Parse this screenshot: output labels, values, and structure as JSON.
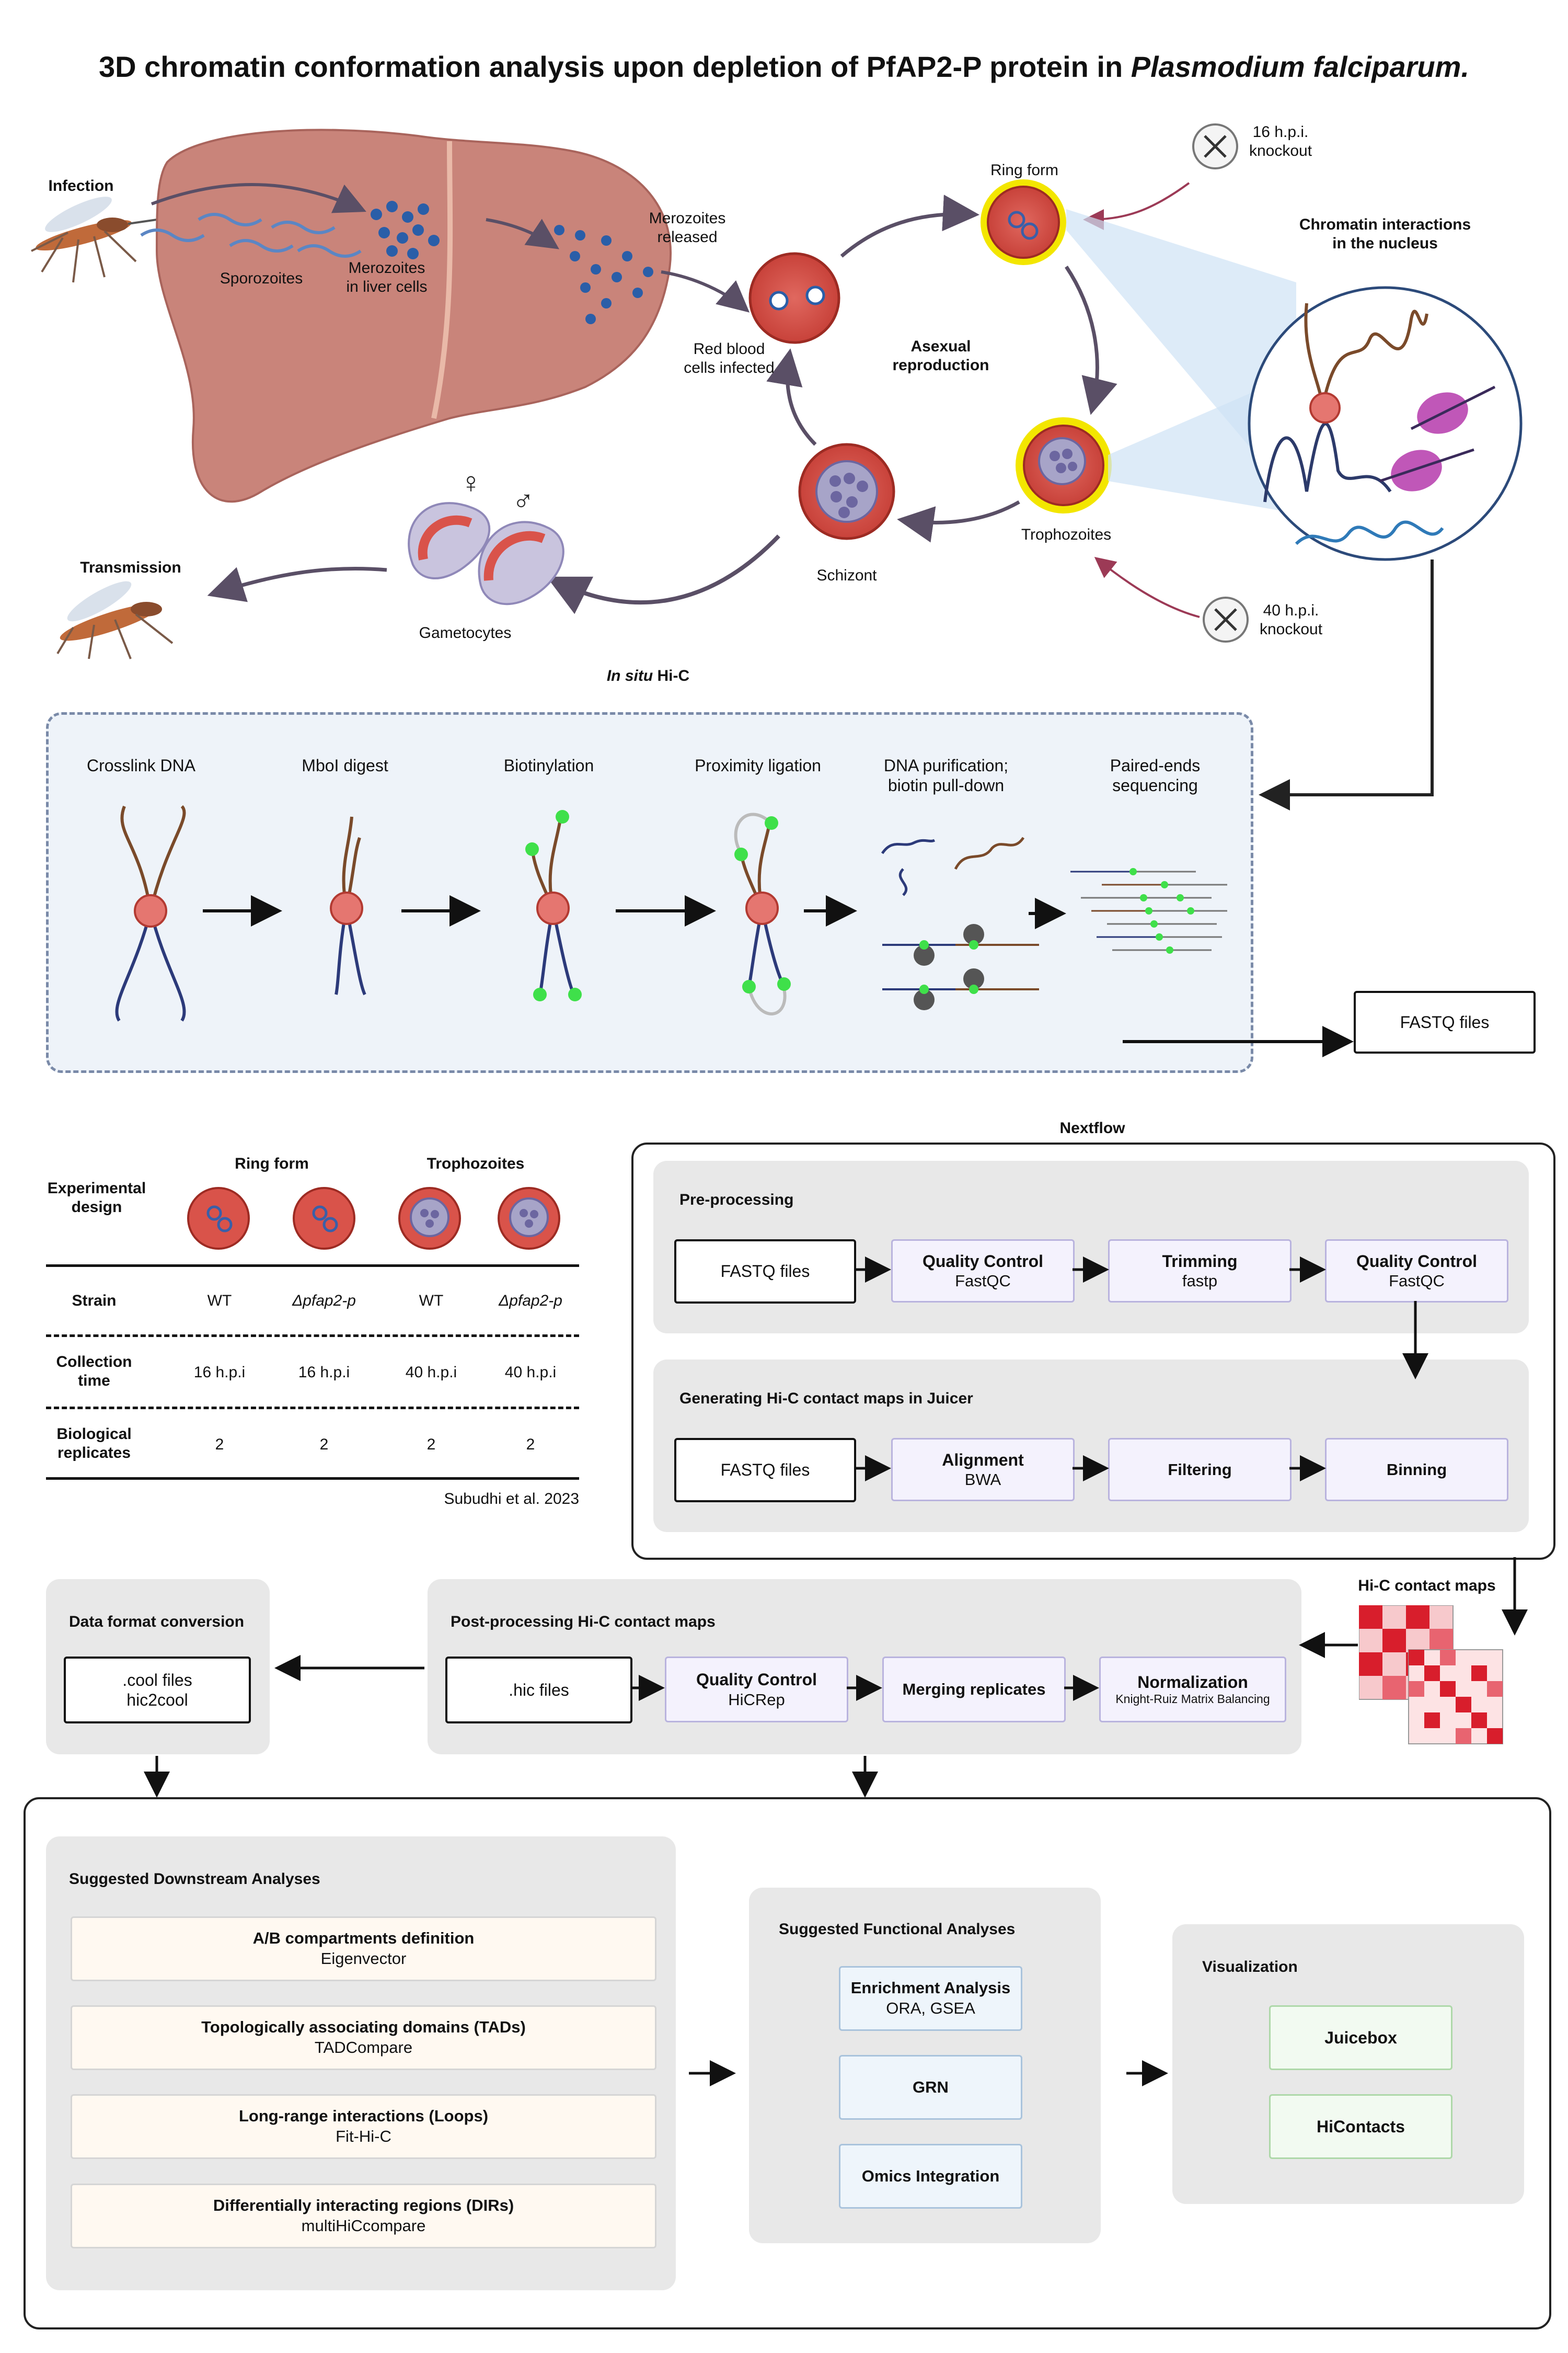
{
  "title_prefix": "3D chromatin conformation analysis upon depletion of PfAP2-P protein in ",
  "title_species": "Plasmodium falciparum.",
  "lifecycle": {
    "infection": "Infection",
    "sporozoites": "Sporozoites",
    "merozoites_liver": "Merozoites\nin liver cells",
    "merozoites_released": "Merozoites\nreleased",
    "rbc_infected": "Red blood\ncells infected",
    "ring_form": "Ring form",
    "asexual": "Asexual\nreproduction",
    "trophozoites": "Trophozoites",
    "schizont": "Schizont",
    "gametocytes": "Gametocytes",
    "transmission": "Transmission",
    "ko16": "16 h.p.i.\nknockout",
    "ko40": "40 h.p.i.\nknockout",
    "chromatin": "Chromatin interactions\nin the nucleus",
    "female_symbol": "♀",
    "male_symbol": "♂"
  },
  "hic": {
    "title_italic": "In situ",
    "title_rest": " Hi-C",
    "steps": [
      "Crosslink DNA",
      "MboI digest",
      "Biotinylation",
      "Proximity ligation",
      "DNA purification;\nbiotin pull-down",
      "Paired-ends\nsequencing"
    ],
    "fastq": "FASTQ files"
  },
  "design": {
    "header": "Experimental\ndesign",
    "col_group_ring": "Ring form",
    "col_group_troph": "Trophozoites",
    "rows": [
      {
        "label": "Strain",
        "values": [
          "WT",
          "Δpfap2-p",
          "WT",
          "Δpfap2-p"
        ]
      },
      {
        "label": "Collection\ntime",
        "values": [
          "16 h.p.i",
          "16 h.p.i",
          "40 h.p.i",
          "40 h.p.i"
        ]
      },
      {
        "label": "Biological\nreplicates",
        "values": [
          "2",
          "2",
          "2",
          "2"
        ]
      }
    ],
    "citation": "Subudhi et al. 2023"
  },
  "nextflow": {
    "title": "Nextflow",
    "pre_title": "Pre-processing",
    "pre": {
      "fastq": "FASTQ files",
      "qc1_bold": "Quality Control",
      "qc1_sub": "FastQC",
      "trim_bold": "Trimming",
      "trim_sub": "fastp",
      "qc2_bold": "Quality Control",
      "qc2_sub": "FastQC"
    },
    "juicer_title": "Generating Hi-C contact maps in Juicer",
    "juicer": {
      "fastq": "FASTQ files",
      "align_bold": "Alignment",
      "align_sub": "BWA",
      "filter": "Filtering",
      "binning": "Binning"
    }
  },
  "contact_maps": "Hi-C contact maps",
  "conversion": {
    "title": "Data format conversion",
    "box_line1": ".cool files",
    "box_line2": "hic2cool"
  },
  "post": {
    "title": "Post-processing Hi-C contact maps",
    "hic": ".hic files",
    "qc_bold": "Quality Control",
    "qc_sub": "HiCRep",
    "merge": "Merging replicates",
    "norm_bold": "Normalization",
    "norm_sub": "Knight-Ruiz Matrix Balancing"
  },
  "downstream": {
    "title": "Suggested Downstream Analyses",
    "items": [
      {
        "bold": "A/B compartments definition",
        "sub": "Eigenvector"
      },
      {
        "bold": "Topologically associating domains (TADs)",
        "sub": "TADCompare"
      },
      {
        "bold": "Long-range interactions (Loops)",
        "sub": "Fit-Hi-C"
      },
      {
        "bold": "Differentially interacting regions (DIRs)",
        "sub": "multiHiCcompare"
      }
    ]
  },
  "functional": {
    "title": "Suggested Functional Analyses",
    "items": [
      {
        "bold": "Enrichment Analysis",
        "sub": "ORA, GSEA"
      },
      {
        "bold": "GRN",
        "sub": ""
      },
      {
        "bold": "Omics Integration",
        "sub": ""
      }
    ]
  },
  "visualization": {
    "title": "Visualization",
    "items": [
      "Juicebox",
      "HiContacts"
    ]
  },
  "colors": {
    "rbc": "#d9534a",
    "rbc_dark": "#b33a32",
    "halo": "#f3e600",
    "liver": "#c9847a",
    "panel_grey": "#e8e8e8",
    "map_red": "#d81e2c"
  }
}
